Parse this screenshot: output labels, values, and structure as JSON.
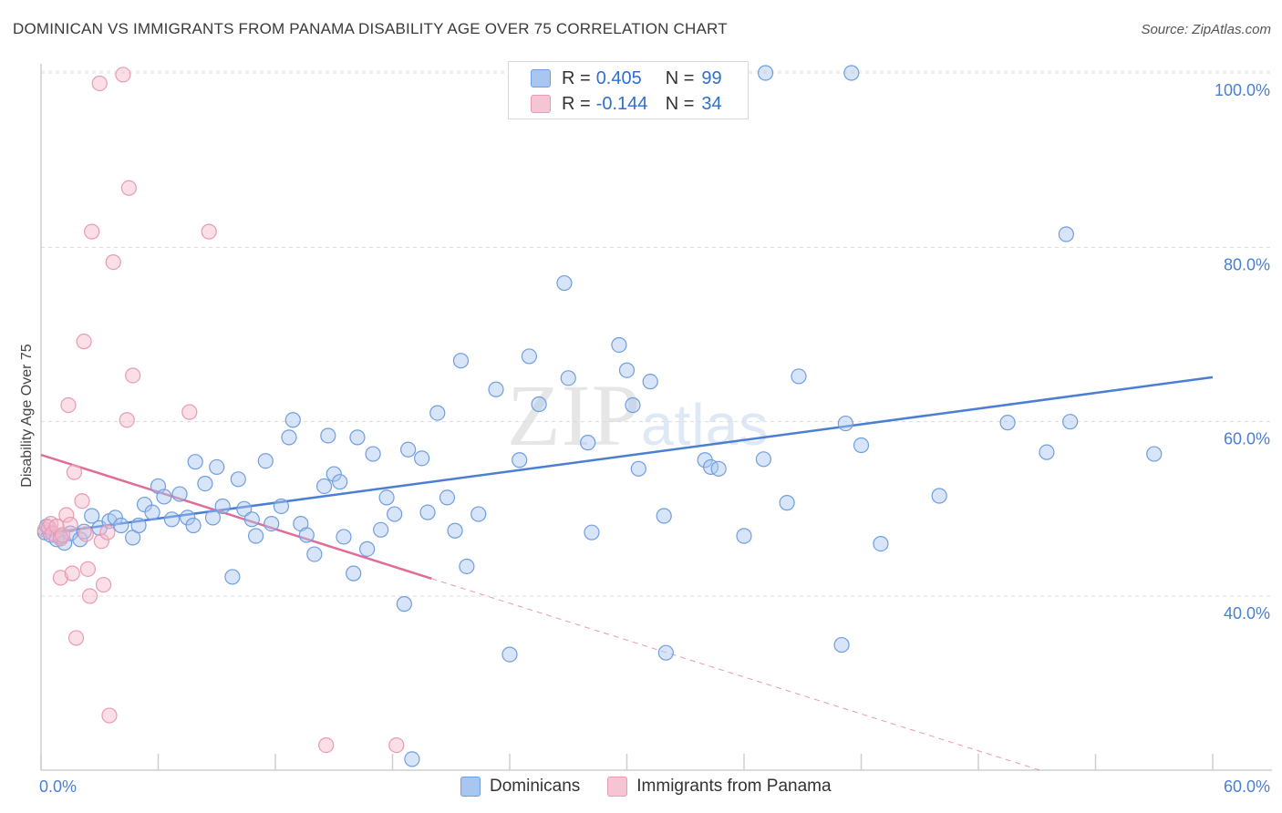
{
  "header": {
    "title": "DOMINICAN VS IMMIGRANTS FROM PANAMA DISABILITY AGE OVER 75 CORRELATION CHART",
    "source": "Source: ZipAtlas.com"
  },
  "watermark": {
    "zip": "ZIP",
    "atlas": "atlas"
  },
  "legend": {
    "rows": [
      {
        "r_label": "R =",
        "r_value": "0.405",
        "n_label": "N =",
        "n_value": "99",
        "color": "#a9c6f0"
      },
      {
        "r_label": "R =",
        "r_value": "-0.144",
        "n_label": "N =",
        "n_value": "34",
        "color": "#f6b8ca"
      }
    ]
  },
  "bottom_legend": {
    "items": [
      {
        "label": "Dominicans",
        "color": "#a9c6f0"
      },
      {
        "label": "Immigrants from Panama",
        "color": "#f6b8ca"
      }
    ]
  },
  "chart_data": {
    "type": "scatter",
    "title": "DOMINICAN VS IMMIGRANTS FROM PANAMA DISABILITY AGE OVER 75 CORRELATION CHART",
    "xlabel": "",
    "ylabel": "Disability Age Over 75",
    "xlim": [
      0,
      60
    ],
    "ylim": [
      20,
      101
    ],
    "x_tick_labels": [
      "0.0%",
      "60.0%"
    ],
    "y_ticks": [
      40,
      60,
      80,
      100
    ],
    "y_tick_labels": [
      "40.0%",
      "60.0%",
      "80.0%",
      "100.0%"
    ],
    "grid": true,
    "legend_position": "top-center",
    "series": [
      {
        "name": "Dominicans",
        "color": "#4a7fd4",
        "fill": "#a9c6f0",
        "trend": {
          "x": [
            0,
            60
          ],
          "y": [
            47.1,
            65.1
          ],
          "style": "solid"
        },
        "points": [
          [
            0.2,
            47.3
          ],
          [
            0.3,
            48.0
          ],
          [
            0.5,
            47.0
          ],
          [
            0.8,
            46.5
          ],
          [
            1.0,
            46.8
          ],
          [
            1.2,
            46.1
          ],
          [
            1.5,
            47.2
          ],
          [
            2.0,
            46.5
          ],
          [
            2.2,
            47.4
          ],
          [
            2.6,
            49.2
          ],
          [
            3.0,
            47.8
          ],
          [
            3.5,
            48.6
          ],
          [
            3.8,
            49.0
          ],
          [
            4.1,
            48.1
          ],
          [
            4.7,
            46.7
          ],
          [
            5.0,
            48.1
          ],
          [
            5.3,
            50.5
          ],
          [
            5.7,
            49.6
          ],
          [
            6.0,
            52.6
          ],
          [
            6.3,
            51.4
          ],
          [
            6.7,
            48.8
          ],
          [
            7.1,
            51.7
          ],
          [
            7.5,
            49.0
          ],
          [
            7.8,
            48.1
          ],
          [
            7.9,
            55.4
          ],
          [
            8.4,
            52.9
          ],
          [
            8.8,
            49.0
          ],
          [
            9.0,
            54.8
          ],
          [
            9.3,
            50.3
          ],
          [
            9.8,
            42.2
          ],
          [
            10.1,
            53.4
          ],
          [
            10.4,
            50.0
          ],
          [
            10.8,
            48.8
          ],
          [
            11.0,
            46.9
          ],
          [
            11.5,
            55.5
          ],
          [
            11.8,
            48.3
          ],
          [
            12.3,
            50.3
          ],
          [
            12.7,
            58.2
          ],
          [
            12.9,
            60.2
          ],
          [
            13.3,
            48.3
          ],
          [
            13.6,
            47.0
          ],
          [
            14.0,
            44.8
          ],
          [
            14.5,
            52.6
          ],
          [
            14.7,
            58.4
          ],
          [
            15.0,
            54.0
          ],
          [
            15.3,
            53.1
          ],
          [
            15.5,
            46.8
          ],
          [
            16.0,
            42.6
          ],
          [
            16.2,
            58.2
          ],
          [
            16.7,
            45.4
          ],
          [
            17.0,
            56.3
          ],
          [
            17.4,
            47.6
          ],
          [
            17.7,
            51.3
          ],
          [
            18.1,
            49.4
          ],
          [
            18.6,
            39.1
          ],
          [
            18.8,
            56.8
          ],
          [
            19.0,
            21.3
          ],
          [
            19.5,
            55.8
          ],
          [
            19.8,
            49.6
          ],
          [
            20.3,
            61.0
          ],
          [
            20.8,
            51.3
          ],
          [
            21.2,
            47.5
          ],
          [
            21.5,
            67.0
          ],
          [
            21.8,
            43.4
          ],
          [
            22.4,
            49.4
          ],
          [
            23.3,
            63.7
          ],
          [
            24.0,
            33.3
          ],
          [
            24.5,
            55.6
          ],
          [
            25.0,
            67.5
          ],
          [
            25.5,
            62.0
          ],
          [
            26.8,
            75.9
          ],
          [
            27.0,
            65.0
          ],
          [
            28.0,
            57.6
          ],
          [
            28.2,
            47.3
          ],
          [
            29.6,
            68.8
          ],
          [
            30.0,
            65.9
          ],
          [
            30.3,
            61.9
          ],
          [
            30.6,
            54.6
          ],
          [
            31.2,
            64.6
          ],
          [
            31.9,
            49.2
          ],
          [
            32.0,
            33.5
          ],
          [
            34.0,
            55.6
          ],
          [
            34.3,
            54.8
          ],
          [
            34.7,
            54.6
          ],
          [
            36.0,
            46.9
          ],
          [
            37.0,
            55.7
          ],
          [
            37.1,
            100.0
          ],
          [
            38.2,
            50.7
          ],
          [
            38.8,
            65.2
          ],
          [
            41.0,
            34.4
          ],
          [
            41.2,
            59.8
          ],
          [
            41.5,
            100.0
          ],
          [
            42.0,
            57.3
          ],
          [
            43.0,
            46.0
          ],
          [
            46.0,
            51.5
          ],
          [
            49.5,
            59.9
          ],
          [
            51.5,
            56.5
          ],
          [
            52.7,
            60.0
          ],
          [
            52.5,
            81.5
          ],
          [
            57.0,
            56.3
          ]
        ]
      },
      {
        "name": "Immigrants from Panama",
        "color": "#e06d97",
        "fill": "#f6b8ca",
        "trend": {
          "x": [
            0,
            20
          ],
          "y": [
            56.2,
            42.0
          ],
          "style": "solid",
          "extended": {
            "x": [
              20,
              51.2
            ],
            "y": [
              42.0,
              20.0
            ],
            "style": "dashed"
          }
        },
        "points": [
          [
            0.2,
            47.6
          ],
          [
            0.4,
            47.9
          ],
          [
            0.5,
            48.3
          ],
          [
            0.6,
            47.2
          ],
          [
            0.8,
            48.0
          ],
          [
            1.0,
            46.6
          ],
          [
            1.1,
            47.0
          ],
          [
            1.0,
            42.1
          ],
          [
            1.3,
            49.3
          ],
          [
            1.4,
            61.9
          ],
          [
            1.5,
            48.2
          ],
          [
            1.6,
            42.6
          ],
          [
            1.7,
            54.2
          ],
          [
            1.8,
            35.2
          ],
          [
            2.1,
            50.9
          ],
          [
            2.2,
            69.2
          ],
          [
            2.3,
            47.1
          ],
          [
            2.4,
            43.1
          ],
          [
            2.5,
            40.0
          ],
          [
            2.6,
            81.8
          ],
          [
            3.0,
            98.8
          ],
          [
            3.1,
            46.3
          ],
          [
            3.2,
            41.3
          ],
          [
            3.4,
            47.3
          ],
          [
            3.5,
            26.3
          ],
          [
            3.7,
            78.3
          ],
          [
            4.2,
            99.8
          ],
          [
            4.4,
            60.2
          ],
          [
            4.5,
            86.8
          ],
          [
            4.7,
            65.3
          ],
          [
            7.6,
            61.1
          ],
          [
            8.6,
            81.8
          ],
          [
            14.6,
            22.9
          ],
          [
            18.2,
            22.9
          ]
        ]
      }
    ]
  }
}
